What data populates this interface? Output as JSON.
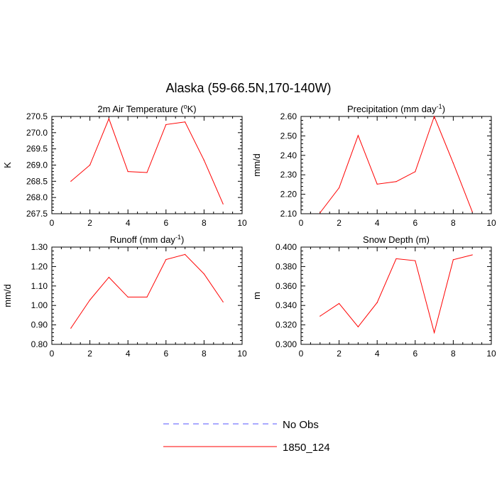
{
  "figure_title": "Alaska (59-66.5N,170-140W)",
  "colors": {
    "model_line": "#ff0000",
    "obs_line": "#5555ff",
    "axis": "#000000"
  },
  "legend": {
    "entries": [
      {
        "label": "No Obs",
        "style": "dashed"
      },
      {
        "label": "1850_124",
        "style": "solid"
      }
    ]
  },
  "chart_data": [
    {
      "type": "line",
      "title": "2m Air Temperature (",
      "title_sup": "o",
      "title_end": "K)",
      "ylabel": "K",
      "xlim": [
        0,
        10
      ],
      "ylim": [
        267.5,
        270.5
      ],
      "x_ticks": [
        0,
        2,
        4,
        6,
        8,
        10
      ],
      "y_ticks": [
        267.5,
        268.0,
        268.5,
        269.0,
        269.5,
        270.0,
        270.5
      ],
      "y_tick_labels": [
        "267.5",
        "268.0",
        "268.5",
        "269.0",
        "269.5",
        "270.0",
        "270.5"
      ],
      "series": [
        {
          "name": "1850_124",
          "x": [
            1,
            2,
            3,
            4,
            5,
            6,
            7,
            8,
            9
          ],
          "values": [
            268.5,
            269.0,
            270.43,
            268.8,
            268.77,
            270.25,
            270.33,
            269.15,
            267.8
          ]
        }
      ]
    },
    {
      "type": "line",
      "title": "Precipitation (mm day",
      "title_sup": "-1",
      "title_end": ")",
      "ylabel": "mm/d",
      "xlim": [
        0,
        10
      ],
      "ylim": [
        2.1,
        2.6
      ],
      "x_ticks": [
        0,
        2,
        4,
        6,
        8,
        10
      ],
      "y_ticks": [
        2.1,
        2.2,
        2.3,
        2.4,
        2.5,
        2.6
      ],
      "y_tick_labels": [
        "2.10",
        "2.20",
        "2.30",
        "2.40",
        "2.50",
        "2.60"
      ],
      "series": [
        {
          "name": "1850_124",
          "x": [
            1,
            2,
            3,
            4,
            5,
            6,
            7,
            8,
            9
          ],
          "values": [
            2.105,
            2.233,
            2.502,
            2.252,
            2.265,
            2.316,
            2.6,
            2.36,
            2.11
          ]
        }
      ]
    },
    {
      "type": "line",
      "title": "Runoff (mm day",
      "title_sup": "-1",
      "title_end": ")",
      "ylabel": "mm/d",
      "xlim": [
        0,
        10
      ],
      "ylim": [
        0.8,
        1.3
      ],
      "x_ticks": [
        0,
        2,
        4,
        6,
        8,
        10
      ],
      "y_ticks": [
        0.8,
        0.9,
        1.0,
        1.1,
        1.2,
        1.3
      ],
      "y_tick_labels": [
        "0.80",
        "0.90",
        "1.00",
        "1.10",
        "1.20",
        "1.30"
      ],
      "series": [
        {
          "name": "1850_124",
          "x": [
            1,
            2,
            3,
            4,
            5,
            6,
            7,
            8,
            9
          ],
          "values": [
            0.883,
            1.028,
            1.145,
            1.043,
            1.043,
            1.236,
            1.262,
            1.162,
            1.018
          ]
        }
      ]
    },
    {
      "type": "line",
      "title": "Snow Depth (m)",
      "title_sup": "",
      "title_end": "",
      "ylabel": "m",
      "xlim": [
        0,
        10
      ],
      "ylim": [
        0.3,
        0.4
      ],
      "x_ticks": [
        0,
        2,
        4,
        6,
        8,
        10
      ],
      "y_ticks": [
        0.3,
        0.32,
        0.34,
        0.36,
        0.38,
        0.4
      ],
      "y_tick_labels": [
        "0.300",
        "0.320",
        "0.340",
        "0.360",
        "0.380",
        "0.400"
      ],
      "series": [
        {
          "name": "1850_124",
          "x": [
            1,
            2,
            3,
            4,
            5,
            6,
            7,
            8,
            9
          ],
          "values": [
            0.329,
            0.342,
            0.318,
            0.343,
            0.388,
            0.386,
            0.312,
            0.387,
            0.392
          ]
        }
      ]
    }
  ]
}
